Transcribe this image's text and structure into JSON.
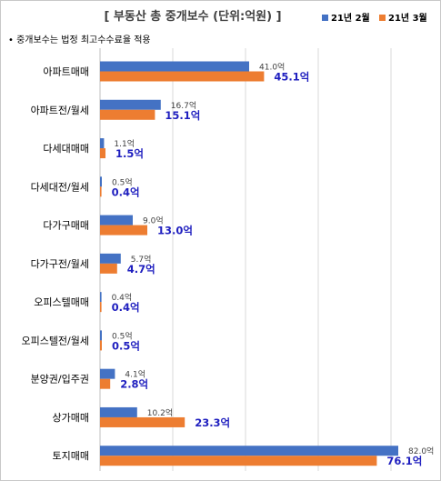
{
  "chart_data": {
    "type": "bar",
    "orientation": "horizontal",
    "title": "[ 부동산 총 중개보수 (단위:억원) ]",
    "note": "• 중개보수는 법정 최고수수료율 적용",
    "categories": [
      "아파트매매",
      "아파트전/월세",
      "다세대매매",
      "다세대전/월세",
      "다가구매매",
      "다가구전/월세",
      "오피스텔매매",
      "오피스텔전/월세",
      "분양권/입주권",
      "상가매매",
      "토지매매"
    ],
    "series": [
      {
        "name": "21년 2월",
        "color": "#4472c4",
        "values": [
          41.0,
          16.7,
          1.1,
          0.5,
          9.0,
          5.7,
          0.4,
          0.5,
          4.1,
          10.2,
          82.0
        ],
        "labels": [
          "41.0억",
          "16.7억",
          "1.1억",
          "0.5억",
          "9.0억",
          "5.7억",
          "0.4억",
          "0.5억",
          "4.1억",
          "10.2억",
          "82.0억"
        ]
      },
      {
        "name": "21년 3월",
        "color": "#ed7d31",
        "values": [
          45.1,
          15.1,
          1.5,
          0.4,
          13.0,
          4.7,
          0.4,
          0.5,
          2.8,
          23.3,
          76.1
        ],
        "labels": [
          "45.1억",
          "15.1억",
          "1.5억",
          "0.4억",
          "13.0억",
          "4.7억",
          "0.4억",
          "0.5억",
          "2.8억",
          "23.3억",
          "76.1억"
        ]
      }
    ],
    "xlim": [
      0,
      90
    ],
    "grid": true,
    "legend_position": "top-right"
  }
}
